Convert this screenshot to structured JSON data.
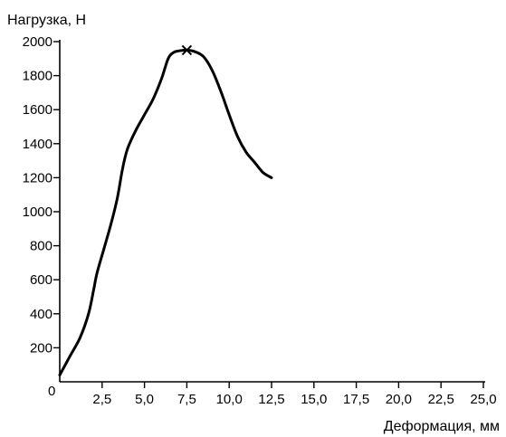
{
  "chart_data": {
    "type": "line",
    "title": "",
    "xlabel": "Деформация, мм",
    "ylabel": "Нагрузка, Н",
    "xlim": [
      0,
      25
    ],
    "ylim": [
      0,
      2000
    ],
    "x_ticks": [
      2.5,
      5,
      7.5,
      10,
      12.5,
      15,
      17.5,
      20,
      22.5,
      25
    ],
    "x_tick_labels": [
      "2,5",
      "5,0",
      "7,5",
      "10,0",
      "12,5",
      "15,0",
      "17,5",
      "20,0",
      "22,5",
      "25,0"
    ],
    "y_ticks": [
      200,
      400,
      600,
      800,
      1000,
      1200,
      1400,
      1600,
      1800,
      2000
    ],
    "y_tick_labels": [
      "200",
      "400",
      "600",
      "800",
      "1000",
      "1200",
      "1400",
      "1600",
      "1800",
      "2000"
    ],
    "origin_label": "0",
    "grid": false,
    "series": [
      {
        "x": [
          0,
          0.6,
          1.2,
          1.7,
          2.0,
          2.2,
          2.6,
          3.0,
          3.4,
          3.7,
          4.0,
          4.5,
          5.0,
          5.5,
          6.0,
          6.4,
          6.7,
          7.0,
          7.5,
          8.0,
          8.5,
          9.0,
          9.5,
          10.0,
          10.5,
          11.0,
          11.5,
          12.0,
          12.5
        ],
        "y": [
          40,
          150,
          260,
          400,
          540,
          640,
          780,
          920,
          1080,
          1250,
          1370,
          1480,
          1570,
          1660,
          1780,
          1900,
          1935,
          1945,
          1950,
          1940,
          1910,
          1830,
          1710,
          1570,
          1440,
          1350,
          1290,
          1230,
          1200
        ]
      }
    ],
    "marker": {
      "x": 7.5,
      "y": 1950,
      "symbol": "x"
    }
  }
}
